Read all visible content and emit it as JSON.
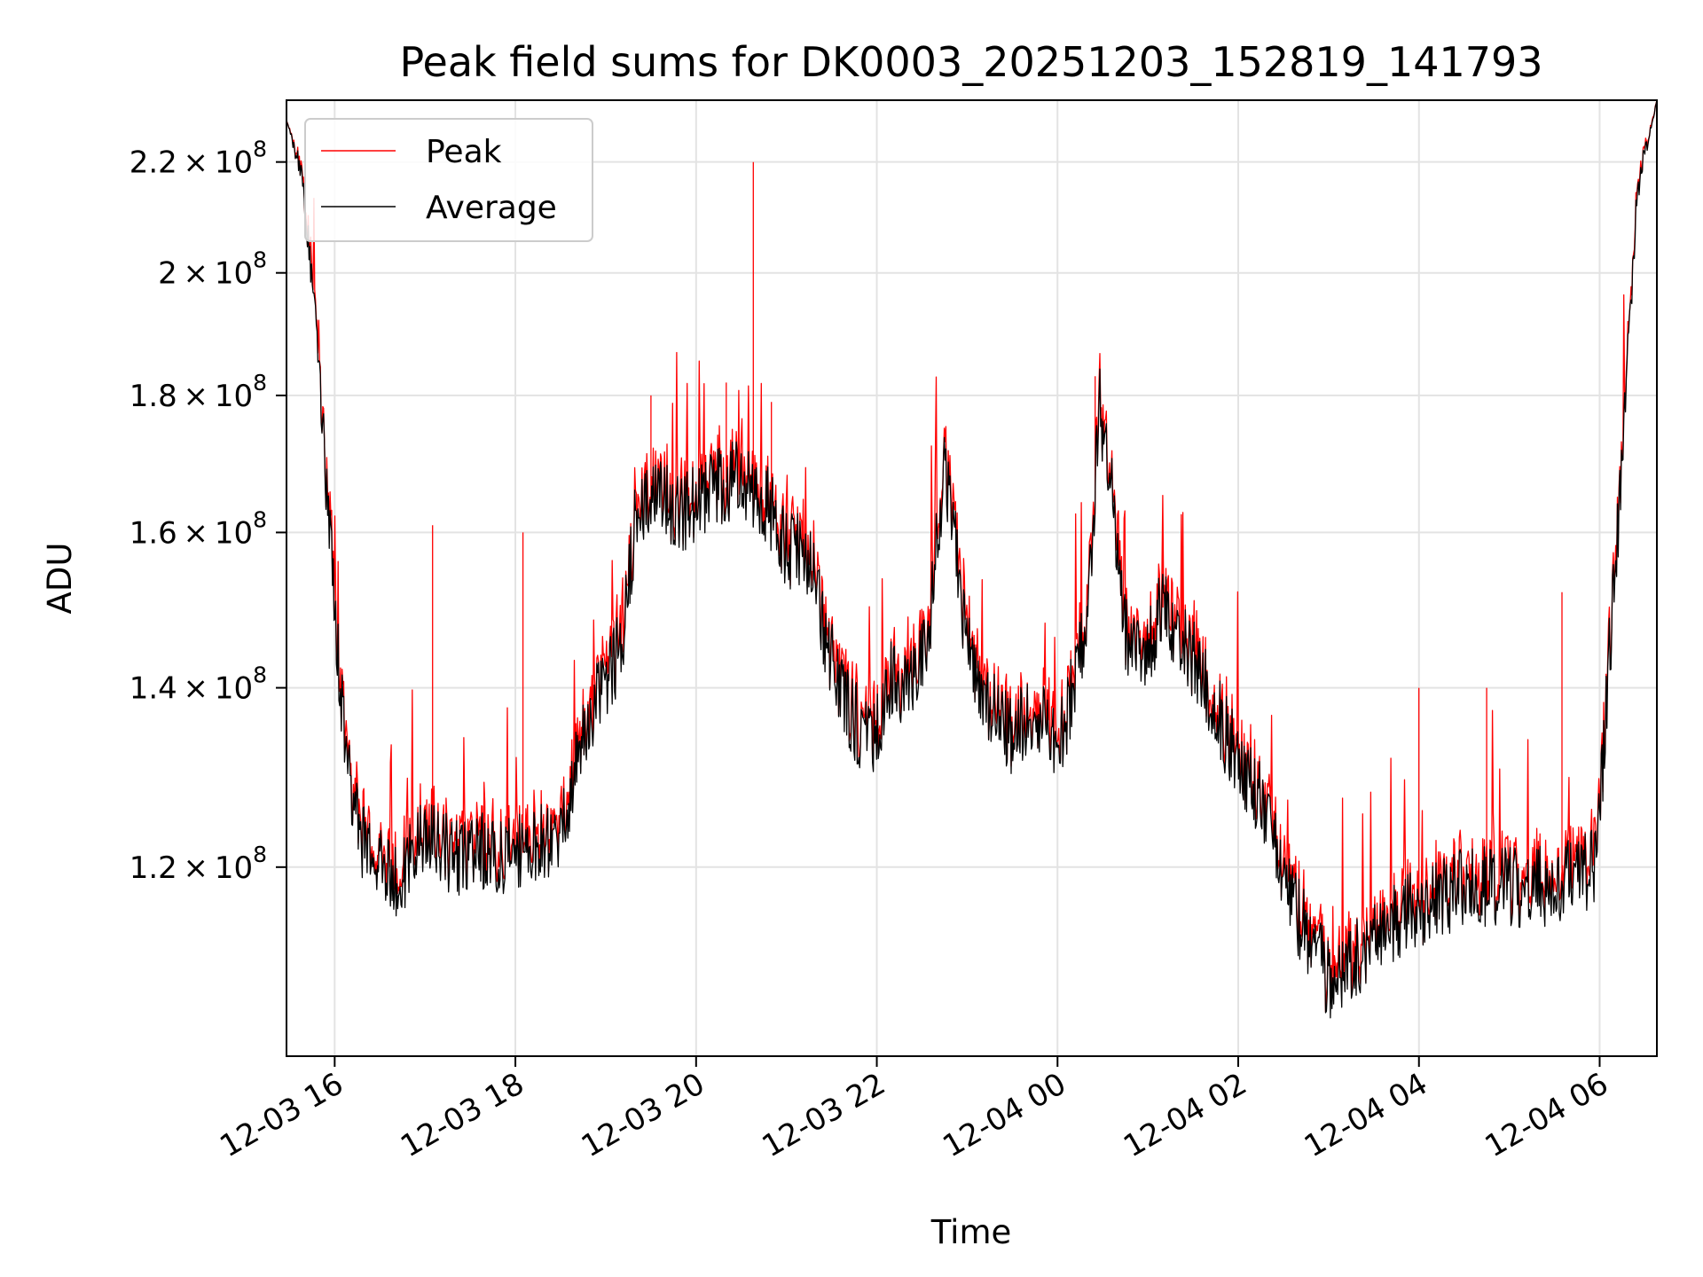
{
  "chart_data": {
    "type": "line",
    "title": "Peak field sums for DK0003_20251203_152819_141793",
    "xlabel": "Time",
    "ylabel": "ADU",
    "y_scale": "log",
    "xlim": [
      "2025-12-03 15:28",
      "2025-12-04 06:38"
    ],
    "ylim": [
      102000000,
      232000000
    ],
    "grid": true,
    "legend_position": "upper left",
    "x_ticks": [
      {
        "value": "2025-12-03 16:00",
        "label": "12-03 16"
      },
      {
        "value": "2025-12-03 18:00",
        "label": "12-03 18"
      },
      {
        "value": "2025-12-03 20:00",
        "label": "12-03 20"
      },
      {
        "value": "2025-12-03 22:00",
        "label": "12-03 22"
      },
      {
        "value": "2025-12-04 00:00",
        "label": "12-04 00"
      },
      {
        "value": "2025-12-04 02:00",
        "label": "12-04 02"
      },
      {
        "value": "2025-12-04 04:00",
        "label": "12-04 04"
      },
      {
        "value": "2025-12-04 06:00",
        "label": "12-04 06"
      }
    ],
    "y_ticks": [
      {
        "value": 120000000,
        "mantissa": "1.2",
        "base": "10",
        "exp": "8"
      },
      {
        "value": 140000000,
        "mantissa": "1.4",
        "base": "10",
        "exp": "8"
      },
      {
        "value": 160000000,
        "mantissa": "1.6",
        "base": "10",
        "exp": "8"
      },
      {
        "value": 180000000,
        "mantissa": "1.8",
        "base": "10",
        "exp": "8"
      },
      {
        "value": 200000000,
        "mantissa": "2",
        "base": "10",
        "exp": "8"
      },
      {
        "value": 220000000,
        "mantissa": "2.2",
        "base": "10",
        "exp": "8"
      }
    ],
    "series": [
      {
        "name": "Peak",
        "color": "#ff0000",
        "noise": 1.0
      },
      {
        "name": "Average",
        "color": "#000000",
        "noise": 0.0
      }
    ],
    "x": [
      "2025-12-03 15:28",
      "2025-12-03 15:38",
      "2025-12-03 15:48",
      "2025-12-03 15:58",
      "2025-12-03 16:08",
      "2025-12-03 16:20",
      "2025-12-03 16:40",
      "2025-12-03 17:00",
      "2025-12-03 17:20",
      "2025-12-03 17:40",
      "2025-12-03 18:00",
      "2025-12-03 18:30",
      "2025-12-03 18:50",
      "2025-12-03 19:10",
      "2025-12-03 19:20",
      "2025-12-03 19:35",
      "2025-12-03 19:50",
      "2025-12-03 20:10",
      "2025-12-03 20:30",
      "2025-12-03 20:50",
      "2025-12-03 21:00",
      "2025-12-03 21:15",
      "2025-12-03 21:25",
      "2025-12-03 21:40",
      "2025-12-03 21:55",
      "2025-12-03 22:10",
      "2025-12-03 22:20",
      "2025-12-03 22:35",
      "2025-12-03 22:45",
      "2025-12-03 23:00",
      "2025-12-03 23:15",
      "2025-12-03 23:30",
      "2025-12-03 23:45",
      "2025-12-04 00:00",
      "2025-12-04 00:10",
      "2025-12-04 00:20",
      "2025-12-04 00:28",
      "2025-12-04 00:35",
      "2025-12-04 00:45",
      "2025-12-04 01:00",
      "2025-12-04 01:10",
      "2025-12-04 01:20",
      "2025-12-04 01:35",
      "2025-12-04 01:50",
      "2025-12-04 02:05",
      "2025-12-04 02:20",
      "2025-12-04 02:40",
      "2025-12-04 03:00",
      "2025-12-04 03:20",
      "2025-12-04 03:40",
      "2025-12-04 04:00",
      "2025-12-04 04:30",
      "2025-12-04 05:00",
      "2025-12-04 05:30",
      "2025-12-04 05:58",
      "2025-12-04 06:05",
      "2025-12-04 06:15",
      "2025-12-04 06:25",
      "2025-12-04 06:38"
    ],
    "average": [
      228000000,
      218000000,
      190000000,
      155000000,
      130000000,
      122000000,
      118000000,
      123000000,
      121000000,
      122000000,
      121000000,
      124000000,
      137000000,
      145000000,
      162000000,
      166000000,
      162000000,
      166000000,
      168000000,
      163000000,
      158000000,
      156000000,
      147000000,
      138000000,
      133000000,
      141000000,
      139000000,
      148000000,
      170000000,
      145000000,
      138000000,
      134000000,
      138000000,
      132000000,
      140000000,
      148000000,
      178000000,
      168000000,
      146000000,
      145000000,
      150000000,
      146000000,
      142000000,
      135000000,
      130000000,
      125000000,
      115000000,
      109000000,
      111000000,
      114000000,
      116000000,
      118000000,
      118000000,
      118000000,
      120000000,
      140000000,
      170000000,
      215000000,
      232000000
    ],
    "peak_spikes": [
      {
        "x": "2025-12-03 20:38",
        "y": 220000000
      },
      {
        "x": "2025-12-03 19:30",
        "y": 180000000
      },
      {
        "x": "2025-12-03 20:20",
        "y": 182000000
      },
      {
        "x": "2025-12-03 20:50",
        "y": 179000000
      },
      {
        "x": "2025-12-03 17:05",
        "y": 161000000
      },
      {
        "x": "2025-12-03 18:05",
        "y": 160000000
      },
      {
        "x": "2025-12-04 05:35",
        "y": 152000000
      },
      {
        "x": "2025-12-04 00:25",
        "y": 183000000
      },
      {
        "x": "2025-12-04 01:10",
        "y": 162000000
      },
      {
        "x": "2025-12-04 04:00",
        "y": 140000000
      },
      {
        "x": "2025-12-04 04:45",
        "y": 140000000
      }
    ]
  }
}
